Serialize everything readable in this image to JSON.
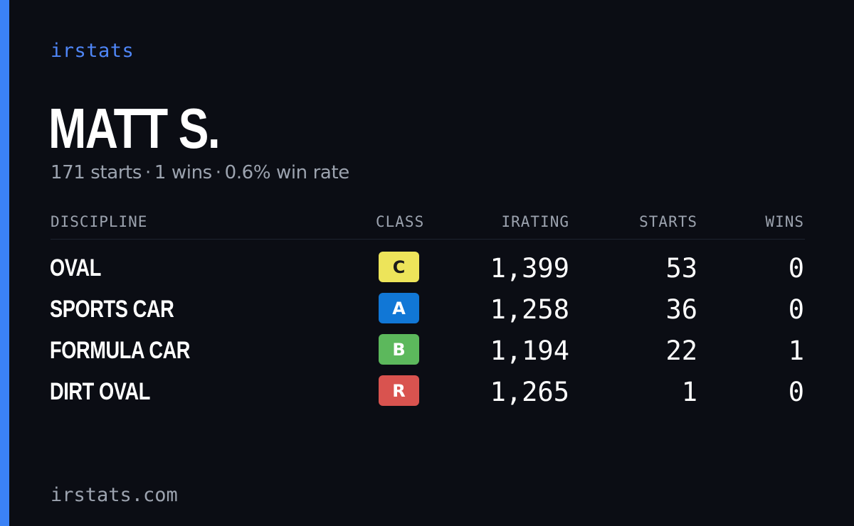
{
  "brand": "irstats",
  "driver": {
    "name": "MATT S.",
    "starts_text": "171 starts",
    "wins_text": "1 wins",
    "winrate_text": "0.6% win rate",
    "separator": "·"
  },
  "table": {
    "headers": {
      "discipline": "DISCIPLINE",
      "class": "CLASS",
      "irating": "IRATING",
      "starts": "STARTS",
      "wins": "WINS"
    },
    "rows": [
      {
        "discipline": "OVAL",
        "class": "C",
        "class_color": "#ede45a",
        "class_text_color": "#1a1a1a",
        "irating": "1,399",
        "starts": "53",
        "wins": "0"
      },
      {
        "discipline": "SPORTS CAR",
        "class": "A",
        "class_color": "#1177d6",
        "class_text_color": "#ffffff",
        "irating": "1,258",
        "starts": "36",
        "wins": "0"
      },
      {
        "discipline": "FORMULA CAR",
        "class": "B",
        "class_color": "#5cb85c",
        "class_text_color": "#ffffff",
        "irating": "1,194",
        "starts": "22",
        "wins": "1"
      },
      {
        "discipline": "DIRT OVAL",
        "class": "R",
        "class_color": "#d9534f",
        "class_text_color": "#ffffff",
        "irating": "1,265",
        "starts": "1",
        "wins": "0"
      }
    ]
  },
  "footer": {
    "url": "irstats.com"
  },
  "colors": {
    "accent": "#3b82f6",
    "background": "#0b0d14",
    "muted": "#9ca3af"
  }
}
